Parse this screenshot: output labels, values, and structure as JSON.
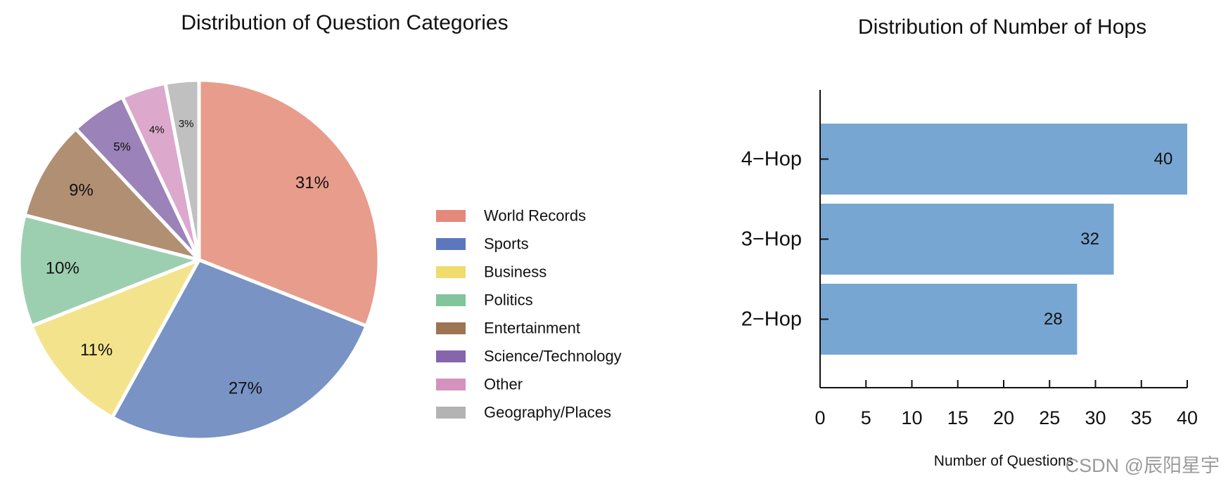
{
  "chart_data": [
    {
      "type": "pie",
      "title": "Distribution of Question Categories",
      "categories": [
        "World Records",
        "Sports",
        "Business",
        "Politics",
        "Entertainment",
        "Science/Technology",
        "Other",
        "Geography/Places"
      ],
      "values": [
        31,
        27,
        11,
        10,
        9,
        5,
        4,
        3
      ],
      "labels": [
        "31%",
        "27%",
        "11%",
        "10%",
        "9%",
        "5%",
        "4%",
        "3%"
      ],
      "colors": [
        "#e89c8c",
        "#7893c4",
        "#f3e38c",
        "#9ccfb0",
        "#b08f73",
        "#9b82b8",
        "#dca8cc",
        "#c0c0c0"
      ],
      "legend_colors": [
        "#e5897a",
        "#5c78bd",
        "#f0dc6c",
        "#82c49c",
        "#9c7553",
        "#8566ad",
        "#d493bd",
        "#b3b3b3"
      ],
      "legend_position": "right"
    },
    {
      "type": "bar",
      "orientation": "horizontal",
      "title": "Distribution of Number of Hops",
      "categories": [
        "4−Hop",
        "3−Hop",
        "2−Hop"
      ],
      "values": [
        40,
        32,
        28
      ],
      "xlabel": "Number of Questions",
      "xlim": [
        0,
        40
      ],
      "xticks": [
        0,
        5,
        10,
        15,
        20,
        25,
        30,
        35,
        40
      ],
      "bar_color": "#78a6d2",
      "grid": false
    }
  ],
  "watermark": "CSDN @辰阳星宇"
}
